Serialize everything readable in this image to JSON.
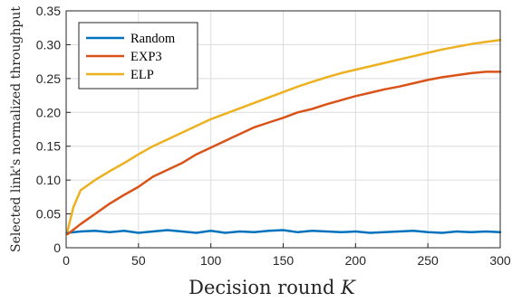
{
  "chart_data": {
    "type": "line",
    "xlabel": "Decision round",
    "xlabel_var": "K",
    "ylabel": "Selected link's normalized throughput",
    "xlim": [
      0,
      300
    ],
    "ylim": [
      0,
      0.35
    ],
    "xticks": [
      0,
      50,
      100,
      150,
      200,
      250,
      300
    ],
    "yticks": [
      "0",
      "0.05",
      "0.10",
      "0.15",
      "0.20",
      "0.25",
      "0.30",
      "0.35"
    ],
    "grid": true,
    "legend": "top-left",
    "series": [
      {
        "name": "Random",
        "color": "#0072BD",
        "x": [
          1,
          10,
          20,
          30,
          40,
          50,
          60,
          70,
          80,
          90,
          100,
          110,
          120,
          130,
          140,
          150,
          160,
          170,
          180,
          190,
          200,
          210,
          220,
          230,
          240,
          250,
          260,
          270,
          280,
          290,
          300
        ],
        "y": [
          0.022,
          0.024,
          0.025,
          0.023,
          0.025,
          0.022,
          0.024,
          0.026,
          0.024,
          0.022,
          0.025,
          0.022,
          0.024,
          0.023,
          0.025,
          0.026,
          0.023,
          0.025,
          0.024,
          0.023,
          0.024,
          0.022,
          0.023,
          0.024,
          0.025,
          0.023,
          0.022,
          0.024,
          0.023,
          0.024,
          0.023
        ]
      },
      {
        "name": "EXP3",
        "color": "#D95319",
        "x": [
          1,
          10,
          20,
          30,
          40,
          50,
          60,
          70,
          80,
          90,
          100,
          110,
          120,
          130,
          140,
          150,
          160,
          170,
          180,
          190,
          200,
          210,
          220,
          230,
          240,
          250,
          260,
          270,
          280,
          290,
          300
        ],
        "y": [
          0.02,
          0.035,
          0.05,
          0.065,
          0.078,
          0.09,
          0.105,
          0.115,
          0.125,
          0.138,
          0.148,
          0.158,
          0.168,
          0.178,
          0.185,
          0.192,
          0.2,
          0.205,
          0.212,
          0.218,
          0.224,
          0.229,
          0.234,
          0.238,
          0.243,
          0.248,
          0.252,
          0.255,
          0.258,
          0.26,
          0.26
        ]
      },
      {
        "name": "ELP",
        "color": "#EDB120",
        "x": [
          1,
          5,
          10,
          20,
          30,
          40,
          50,
          60,
          70,
          80,
          90,
          100,
          110,
          120,
          130,
          140,
          150,
          160,
          170,
          180,
          190,
          200,
          210,
          220,
          230,
          240,
          250,
          260,
          270,
          280,
          290,
          300
        ],
        "y": [
          0.025,
          0.06,
          0.085,
          0.1,
          0.113,
          0.125,
          0.138,
          0.15,
          0.16,
          0.17,
          0.18,
          0.19,
          0.198,
          0.206,
          0.214,
          0.222,
          0.23,
          0.238,
          0.245,
          0.252,
          0.258,
          0.263,
          0.268,
          0.273,
          0.278,
          0.283,
          0.288,
          0.293,
          0.297,
          0.301,
          0.304,
          0.307
        ]
      }
    ]
  }
}
